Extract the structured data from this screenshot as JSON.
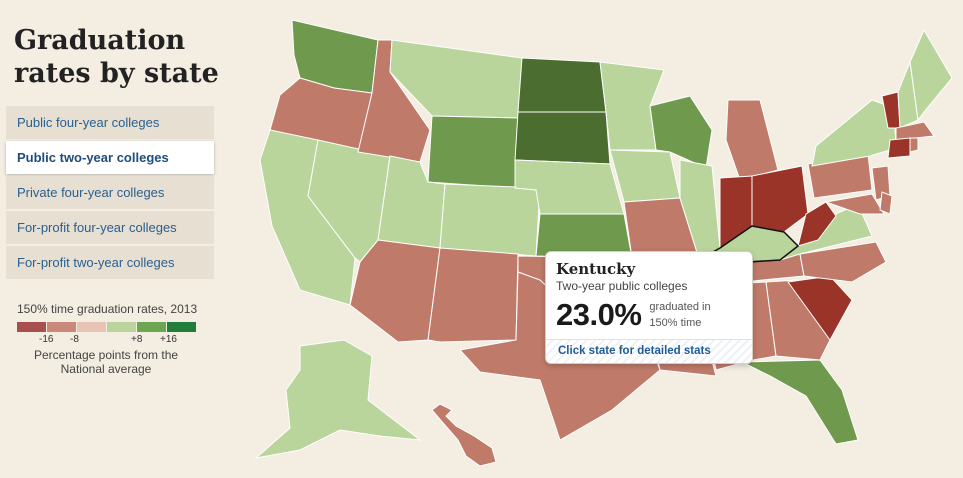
{
  "page": {
    "title": "Graduation rates by state"
  },
  "menu": {
    "items": [
      {
        "label": "Public four-year colleges",
        "active": false
      },
      {
        "label": "Public two-year colleges",
        "active": true
      },
      {
        "label": "Private four-year colleges",
        "active": false
      },
      {
        "label": "For-profit four-year colleges",
        "active": false
      },
      {
        "label": "For-profit two-year colleges",
        "active": false
      }
    ]
  },
  "legend": {
    "title": "150% time graduation rates, 2013",
    "ticks": [
      "-16",
      "-8",
      "+8",
      "+16"
    ],
    "note": "Percentage points from the National average",
    "colors": [
      "#a8504c",
      "#c9887a",
      "#e9c4b5",
      "#b9d59b",
      "#6da553",
      "#237d3a"
    ]
  },
  "colors": {
    "dark_red": "#9a3328",
    "mid_red": "#bf7a6a",
    "light_green": "#b9d59b",
    "mid_green": "#6f9a4d",
    "dark_green": "#4b6d2f"
  },
  "tooltip": {
    "state": "Kentucky",
    "sector": "Two-year public colleges",
    "value": "23.0%",
    "desc": "graduated in 150% time",
    "link": "Click state for detailed stats"
  }
}
